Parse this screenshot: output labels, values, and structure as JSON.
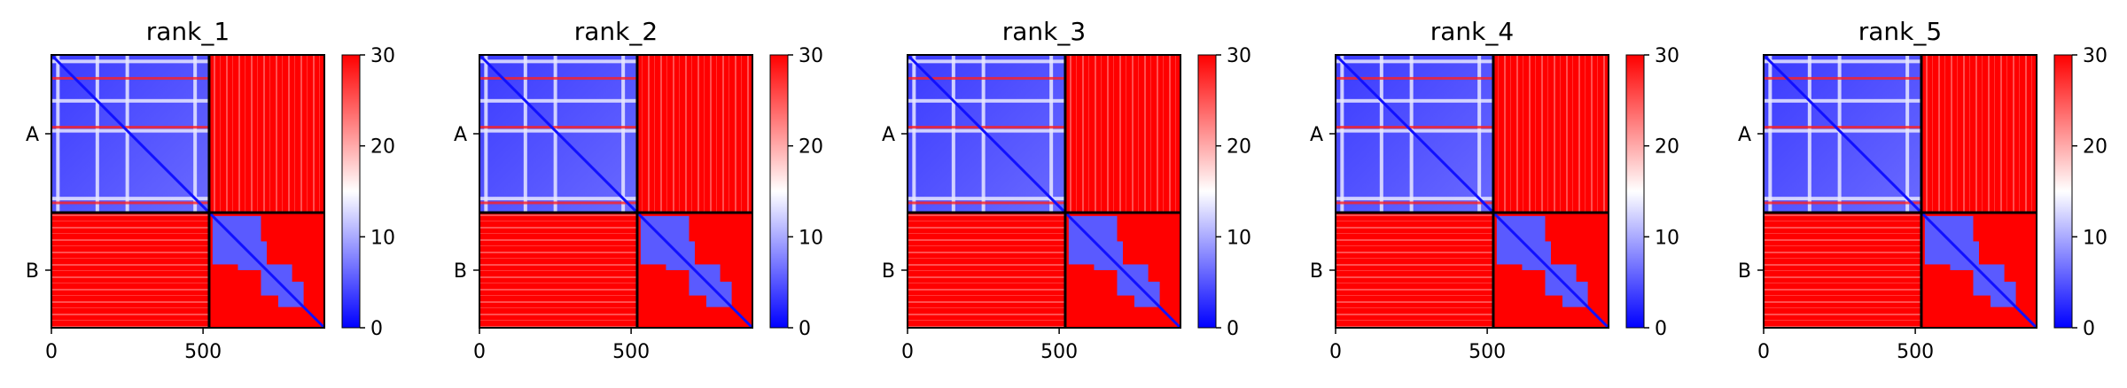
{
  "figure": {
    "chains": [
      "A",
      "B"
    ],
    "chain_boundaries": [
      0,
      520,
      900
    ],
    "colorscale": [
      "#0000ff",
      "#ffffff",
      "#ff0000"
    ]
  },
  "chart_data": [
    {
      "type": "heatmap",
      "title": "rank_1",
      "xlim": [
        0,
        900
      ],
      "xticks": [
        0,
        500
      ],
      "yticks": [
        "A",
        "B"
      ],
      "clim": [
        0,
        30
      ],
      "cticks": [
        0,
        10,
        20,
        30
      ]
    },
    {
      "type": "heatmap",
      "title": "rank_2",
      "xlim": [
        0,
        900
      ],
      "xticks": [
        0,
        500
      ],
      "yticks": [
        "A",
        "B"
      ],
      "clim": [
        0,
        30
      ],
      "cticks": [
        0,
        10,
        20,
        30
      ]
    },
    {
      "type": "heatmap",
      "title": "rank_3",
      "xlim": [
        0,
        900
      ],
      "xticks": [
        0,
        500
      ],
      "yticks": [
        "A",
        "B"
      ],
      "clim": [
        0,
        30
      ],
      "cticks": [
        0,
        10,
        20,
        30
      ]
    },
    {
      "type": "heatmap",
      "title": "rank_4",
      "xlim": [
        0,
        900
      ],
      "xticks": [
        0,
        500
      ],
      "yticks": [
        "A",
        "B"
      ],
      "clim": [
        0,
        30
      ],
      "cticks": [
        0,
        10,
        20,
        30
      ]
    },
    {
      "type": "heatmap",
      "title": "rank_5",
      "xlim": [
        0,
        900
      ],
      "xticks": [
        0,
        500
      ],
      "yticks": [
        "A",
        "B"
      ],
      "clim": [
        0,
        30
      ],
      "cticks": [
        0,
        10,
        20,
        30
      ]
    }
  ]
}
